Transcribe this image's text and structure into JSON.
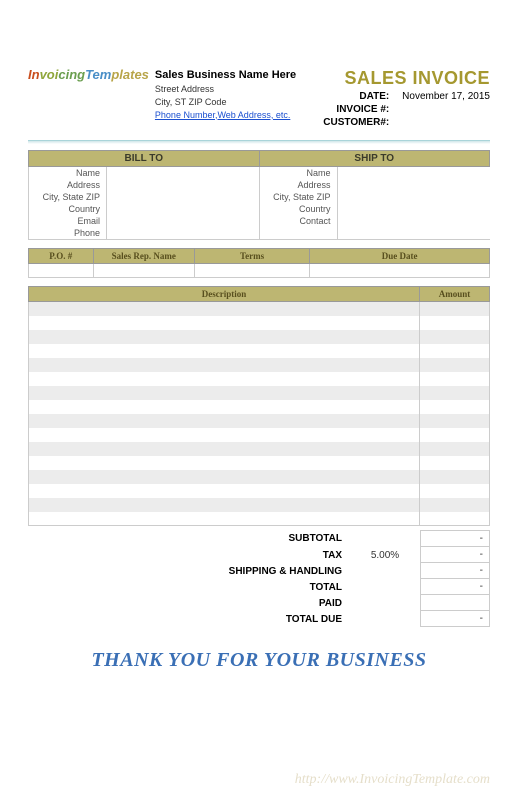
{
  "logo_text": "InvoicingTemplates",
  "business": {
    "name": "Sales Business Name Here",
    "street": "Street Address",
    "city_st_zip": "City, ST  ZIP Code",
    "contact_link": "Phone Number,Web Address, etc."
  },
  "invoice": {
    "title": "SALES INVOICE",
    "date_label": "DATE:",
    "date_value": "November 17, 2015",
    "number_label": "INVOICE #:",
    "number_value": "",
    "customer_label": "CUSTOMER#:",
    "customer_value": ""
  },
  "address": {
    "bill_to_header": "BILL TO",
    "ship_to_header": "SHIP TO",
    "bill_fields": [
      "Name",
      "Address",
      "City, State ZIP",
      "Country",
      "Email",
      "Phone"
    ],
    "ship_fields": [
      "Name",
      "Address",
      "City, State ZIP",
      "Country",
      "Contact",
      ""
    ]
  },
  "po": {
    "headers": [
      "P.O. #",
      "Sales Rep. Name",
      "Terms",
      "Due Date"
    ],
    "col_widths": [
      "14%",
      "22%",
      "25%",
      "39%"
    ]
  },
  "items": {
    "headers": [
      "Description",
      "Amount"
    ],
    "row_count": 16
  },
  "summary": {
    "rows": [
      {
        "label": "SUBTOTAL",
        "mid": "",
        "value": "-"
      },
      {
        "label": "TAX",
        "mid": "5.00%",
        "value": "-"
      },
      {
        "label": "SHIPPING & HANDLING",
        "mid": "",
        "value": "-"
      },
      {
        "label": "TOTAL",
        "mid": "",
        "value": "-"
      },
      {
        "label": "PAID",
        "mid": "",
        "value": ""
      },
      {
        "label": "TOTAL DUE",
        "mid": "",
        "value": "-"
      }
    ]
  },
  "footer": {
    "thanks": "THANK YOU FOR YOUR BUSINESS",
    "watermark": "http://www.InvoicingTemplate.com"
  },
  "colors": {
    "header_bg": "#bdb672",
    "header_text": "#584f1e",
    "accent": "#a59830",
    "row_alt": "#ececec",
    "thanks": "#3a6fb5",
    "link": "#1a4fd0"
  }
}
